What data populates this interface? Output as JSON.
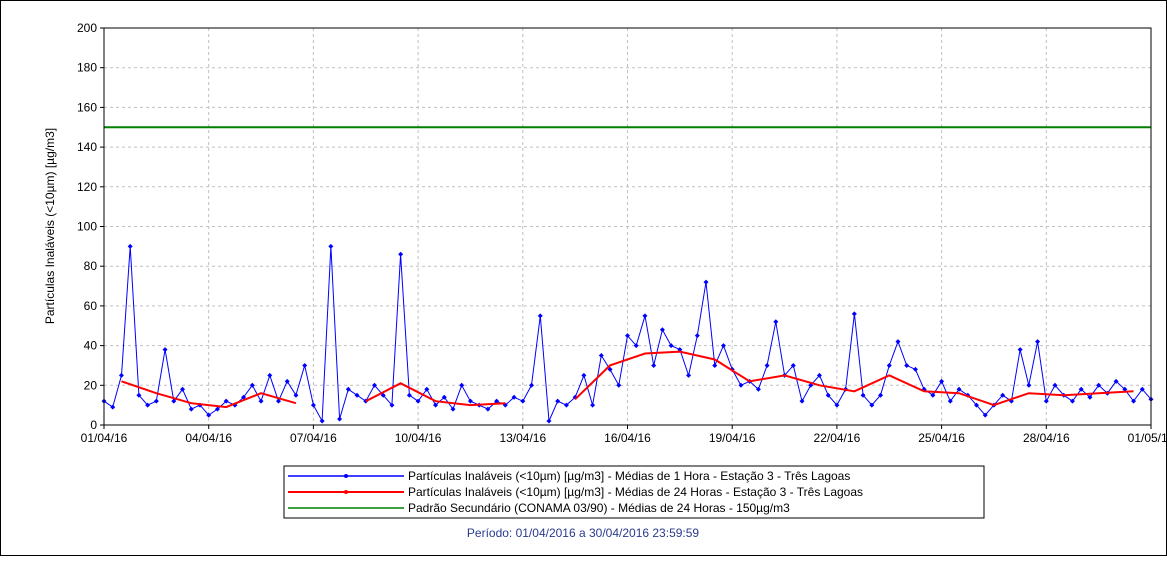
{
  "chart_data": {
    "type": "line",
    "ylabel": "Partículas Inaláveis (<10µm) [µg/m3]",
    "footer": "Período: 01/04/2016 a 30/04/2016 23:59:59",
    "xlim": [
      0,
      30
    ],
    "xticks": [
      {
        "value": 0,
        "label": "01/04/16"
      },
      {
        "value": 3,
        "label": "04/04/16"
      },
      {
        "value": 6,
        "label": "07/04/16"
      },
      {
        "value": 9,
        "label": "10/04/16"
      },
      {
        "value": 12,
        "label": "13/04/16"
      },
      {
        "value": 15,
        "label": "16/04/16"
      },
      {
        "value": 18,
        "label": "19/04/16"
      },
      {
        "value": 21,
        "label": "22/04/16"
      },
      {
        "value": 24,
        "label": "25/04/16"
      },
      {
        "value": 27,
        "label": "28/04/16"
      },
      {
        "value": 30,
        "label": "01/05/16"
      }
    ],
    "ylim": [
      0,
      200
    ],
    "yticks": [
      0,
      20,
      40,
      60,
      80,
      100,
      120,
      140,
      160,
      180,
      200
    ],
    "grid": true,
    "legend": "bottom",
    "series": [
      {
        "name": "Partículas Inaláveis (<10µm) [µg/m3] - Médias de 1 Hora - Estação 3 - Três Lagoas",
        "color": "#0000ff",
        "markers": true,
        "x": [
          0,
          0.25,
          0.5,
          0.75,
          1,
          1.25,
          1.5,
          1.75,
          2,
          2.25,
          2.5,
          2.75,
          3,
          3.25,
          3.5,
          3.75,
          4,
          4.25,
          4.5,
          4.75,
          5,
          5.25,
          5.5,
          5.75,
          6,
          6.25,
          6.5,
          6.75,
          7,
          7.25,
          7.5,
          7.75,
          8,
          8.25,
          8.5,
          8.75,
          9,
          9.25,
          9.5,
          9.75,
          10,
          10.25,
          10.5,
          10.75,
          11,
          11.25,
          11.5,
          11.75,
          12,
          12.25,
          12.5,
          12.75,
          13,
          13.25,
          13.5,
          13.75,
          14,
          14.25,
          14.5,
          14.75,
          15,
          15.25,
          15.5,
          15.75,
          16,
          16.25,
          16.5,
          16.75,
          17,
          17.25,
          17.5,
          17.75,
          18,
          18.25,
          18.5,
          18.75,
          19,
          19.25,
          19.5,
          19.75,
          20,
          20.25,
          20.5,
          20.75,
          21,
          21.25,
          21.5,
          21.75,
          22,
          22.25,
          22.5,
          22.75,
          23,
          23.25,
          23.5,
          23.75,
          24,
          24.25,
          24.5,
          24.75,
          25,
          25.25,
          25.5,
          25.75,
          26,
          26.25,
          26.5,
          26.75,
          27,
          27.25,
          27.5,
          27.75,
          28,
          28.25,
          28.5,
          28.75,
          29,
          29.25,
          29.5,
          29.75,
          30
        ],
        "values": [
          12,
          9,
          25,
          90,
          15,
          10,
          12,
          38,
          12,
          18,
          8,
          10,
          5,
          8,
          12,
          10,
          14,
          20,
          12,
          25,
          12,
          22,
          15,
          30,
          10,
          2,
          90,
          3,
          18,
          15,
          12,
          20,
          15,
          10,
          86,
          15,
          12,
          18,
          10,
          14,
          8,
          20,
          12,
          10,
          8,
          12,
          10,
          14,
          12,
          20,
          55,
          2,
          12,
          10,
          14,
          25,
          10,
          35,
          28,
          20,
          45,
          40,
          55,
          30,
          48,
          40,
          38,
          25,
          45,
          72,
          30,
          40,
          28,
          20,
          22,
          18,
          30,
          52,
          25,
          30,
          12,
          20,
          25,
          15,
          10,
          18,
          56,
          15,
          10,
          15,
          30,
          42,
          30,
          28,
          18,
          15,
          22,
          12,
          18,
          15,
          10,
          5,
          10,
          15,
          12,
          38,
          20,
          42,
          12,
          20,
          15,
          12,
          18,
          14,
          20,
          16,
          22,
          18,
          12,
          18,
          13
        ]
      },
      {
        "name": "Partículas Inaláveis (<10µm) [µg/m3] - Médias de 24 Horas - Estação 3 - Três Lagoas",
        "color": "#ff0000",
        "markers": false,
        "x": [
          0.5,
          1.5,
          2.5,
          3.5,
          4.5,
          5.5,
          6.5,
          7.5,
          8.5,
          9.5,
          10.5,
          11.5,
          12.5,
          13.5,
          14.5,
          15.5,
          16.5,
          17.5,
          18.5,
          19.5,
          20.5,
          21.5,
          22.5,
          23.5,
          24.5,
          25.5,
          26.5,
          27.5,
          28.5,
          29.5
        ],
        "values": [
          22,
          16,
          11,
          9,
          16,
          11,
          null,
          12,
          21,
          12,
          10,
          11,
          null,
          13,
          30,
          36,
          37,
          33,
          22,
          25,
          20,
          17,
          25,
          17,
          16,
          10,
          16,
          15,
          16,
          17
        ]
      },
      {
        "name": "Padrão Secundário (CONAMA 03/90) - Médias de 24 Horas - 150µg/m3",
        "color": "#008000",
        "markers": false,
        "x": [
          0,
          30
        ],
        "values": [
          150,
          150
        ]
      }
    ]
  }
}
